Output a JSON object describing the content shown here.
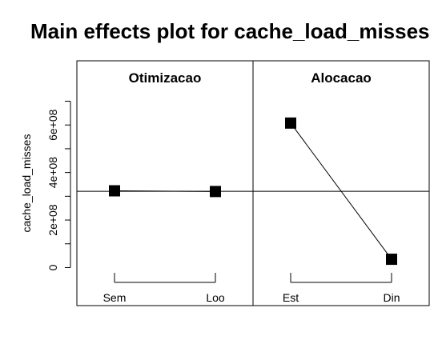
{
  "chart_data": {
    "type": "line",
    "title": "Main effects plot for cache_load_misses",
    "ylabel": "cache_load_misses",
    "ylim": [
      -160000000,
      870000000
    ],
    "y_ticks": [
      0,
      200000000,
      400000000,
      600000000
    ],
    "y_tick_labels": [
      "0",
      "2e+08",
      "4e+08",
      "6e+08"
    ],
    "y_minor_ticks": [
      100000000,
      300000000,
      500000000,
      700000000
    ],
    "grand_mean": 321000000,
    "panels": [
      {
        "factor": "Otimizacao",
        "levels": [
          "Sem",
          "Loo"
        ],
        "values": [
          323000000,
          320000000
        ]
      },
      {
        "factor": "Alocacao",
        "levels": [
          "Est",
          "Din"
        ],
        "values": [
          608000000,
          35000000
        ]
      }
    ]
  },
  "colors": {
    "line": "#000000",
    "marker": "#000000",
    "background": "#ffffff"
  }
}
